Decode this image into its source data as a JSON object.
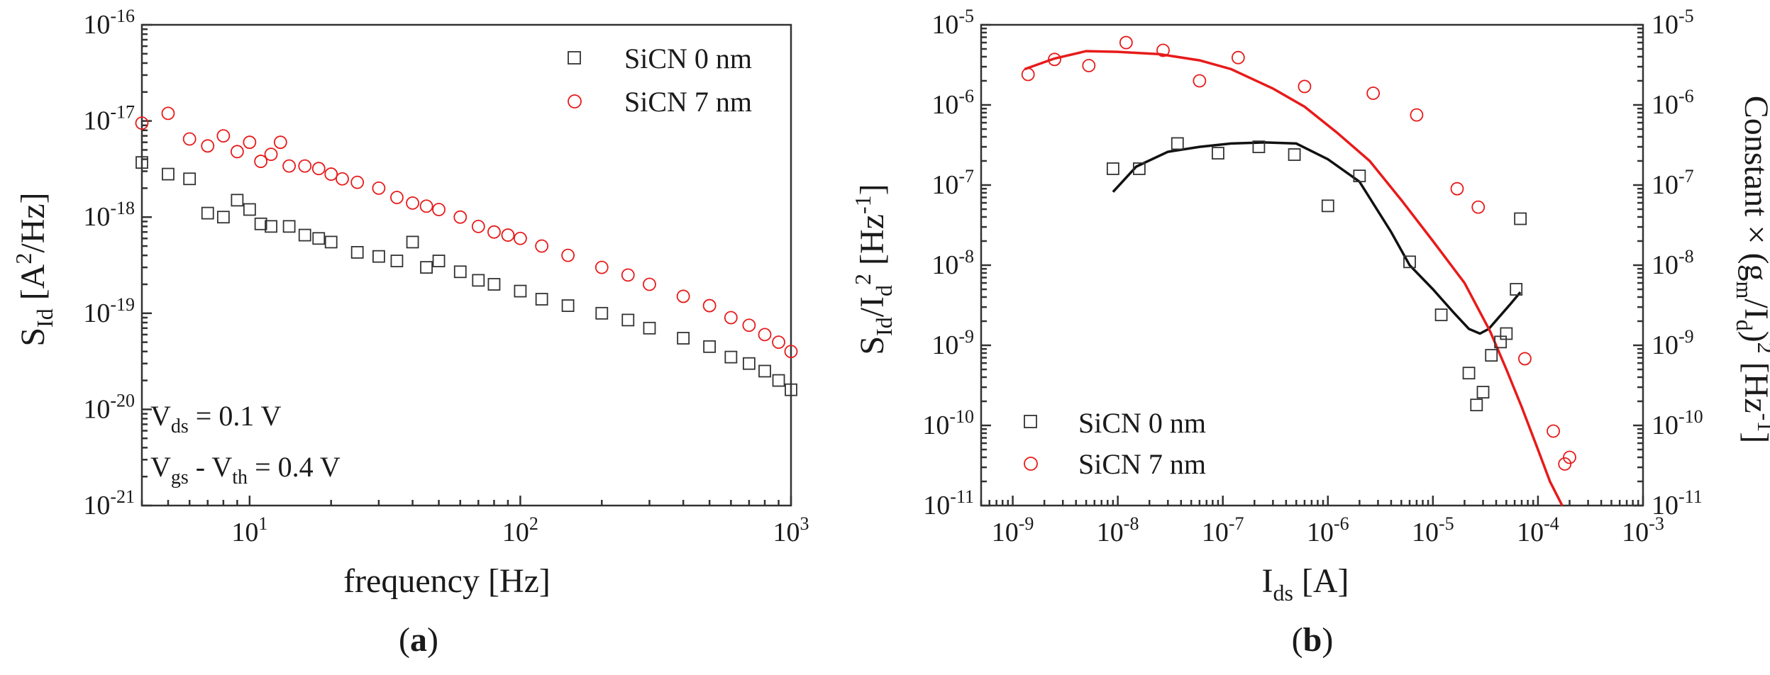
{
  "chart_data": [
    {
      "type": "scatter",
      "panel_label": "(a)",
      "xlabel": "frequency [Hz]",
      "ylabel": "S_Id [A^2/Hz]",
      "xscale": "log",
      "yscale": "log",
      "xlim": [
        4,
        1000
      ],
      "ylim": [
        1e-21,
        1e-16
      ],
      "x_ticks": [
        {
          "v": 10,
          "m": "10",
          "e": "1"
        },
        {
          "v": 100,
          "m": "10",
          "e": "2"
        },
        {
          "v": 1000,
          "m": "10",
          "e": "3"
        }
      ],
      "y_ticks": [
        {
          "v": 1e-21,
          "m": "10",
          "e": "-21"
        },
        {
          "v": 1e-20,
          "m": "10",
          "e": "-20"
        },
        {
          "v": 1e-19,
          "m": "10",
          "e": "-19"
        },
        {
          "v": 1e-18,
          "m": "10",
          "e": "-18"
        },
        {
          "v": 1e-17,
          "m": "10",
          "e": "-17"
        },
        {
          "v": 1e-16,
          "m": "10",
          "e": "-16"
        }
      ],
      "annotations": [
        {
          "main": "V",
          "sub": "ds",
          "rest": " = 0.1 V"
        },
        {
          "main": "V",
          "sub": "gs",
          "mid": " - V",
          "sub2": "th",
          "rest": " = 0.4 V"
        }
      ],
      "legend": {
        "position": "top-right",
        "entries": [
          "SiCN 0 nm",
          "SiCN 7 nm"
        ]
      },
      "series": [
        {
          "name": "SiCN 0 nm",
          "marker": "square",
          "color": "#333333",
          "x": [
            4,
            5,
            6,
            7,
            8,
            9,
            10,
            11,
            12,
            14,
            16,
            18,
            20,
            25,
            30,
            35,
            40,
            45,
            50,
            60,
            70,
            80,
            100,
            120,
            150,
            200,
            250,
            300,
            400,
            500,
            600,
            700,
            800,
            900,
            1000
          ],
          "y": [
            3.7e-18,
            2.8e-18,
            2.5e-18,
            1.1e-18,
            1e-18,
            1.5e-18,
            1.2e-18,
            8.5e-19,
            8e-19,
            8e-19,
            6.5e-19,
            6e-19,
            5.5e-19,
            4.3e-19,
            3.9e-19,
            3.5e-19,
            5.5e-19,
            3e-19,
            3.5e-19,
            2.7e-19,
            2.2e-19,
            2e-19,
            1.7e-19,
            1.4e-19,
            1.2e-19,
            1e-19,
            8.5e-20,
            7e-20,
            5.5e-20,
            4.5e-20,
            3.5e-20,
            3e-20,
            2.5e-20,
            2e-20,
            1.6e-20
          ]
        },
        {
          "name": "SiCN 7 nm",
          "marker": "circle",
          "color": "#e81a1a",
          "x": [
            4,
            5,
            6,
            7,
            8,
            9,
            10,
            11,
            12,
            13,
            14,
            16,
            18,
            20,
            22,
            25,
            30,
            35,
            40,
            45,
            50,
            60,
            70,
            80,
            90,
            100,
            120,
            150,
            200,
            250,
            300,
            400,
            500,
            600,
            700,
            800,
            900,
            1000
          ],
          "y": [
            9.5e-18,
            1.2e-17,
            6.5e-18,
            5.5e-18,
            7e-18,
            4.8e-18,
            6e-18,
            3.8e-18,
            4.5e-18,
            6e-18,
            3.4e-18,
            3.4e-18,
            3.2e-18,
            2.8e-18,
            2.5e-18,
            2.3e-18,
            2e-18,
            1.6e-18,
            1.4e-18,
            1.3e-18,
            1.2e-18,
            1e-18,
            8e-19,
            7e-19,
            6.5e-19,
            6e-19,
            5e-19,
            4e-19,
            3e-19,
            2.5e-19,
            2e-19,
            1.5e-19,
            1.2e-19,
            9e-20,
            7.5e-20,
            6e-20,
            5e-20,
            4e-20
          ]
        }
      ]
    },
    {
      "type": "scatter",
      "panel_label": "(b)",
      "xlabel": "I_ds [A]",
      "ylabel": "S_Id/I_d^2 [Hz^-1]",
      "y2label": "Constant × (g_m/I_d)^2 [Hz^-1]",
      "xscale": "log",
      "yscale": "log",
      "xlim": [
        5e-10,
        0.001
      ],
      "ylim": [
        1e-11,
        1e-05
      ],
      "x_ticks": [
        {
          "v": 1e-09,
          "m": "10",
          "e": "-9"
        },
        {
          "v": 1e-08,
          "m": "10",
          "e": "-8"
        },
        {
          "v": 1e-07,
          "m": "10",
          "e": "-7"
        },
        {
          "v": 1e-06,
          "m": "10",
          "e": "-6"
        },
        {
          "v": 1e-05,
          "m": "10",
          "e": "-5"
        },
        {
          "v": 0.0001,
          "m": "10",
          "e": "-4"
        },
        {
          "v": 0.001,
          "m": "10",
          "e": "-3"
        }
      ],
      "y_ticks": [
        {
          "v": 1e-11,
          "m": "10",
          "e": "-11"
        },
        {
          "v": 1e-10,
          "m": "10",
          "e": "-10"
        },
        {
          "v": 1e-09,
          "m": "10",
          "e": "-9"
        },
        {
          "v": 1e-08,
          "m": "10",
          "e": "-8"
        },
        {
          "v": 1e-07,
          "m": "10",
          "e": "-7"
        },
        {
          "v": 1e-06,
          "m": "10",
          "e": "-6"
        },
        {
          "v": 1e-05,
          "m": "10",
          "e": "-5"
        }
      ],
      "legend": {
        "position": "bottom-left",
        "entries": [
          "SiCN 0 nm",
          "SiCN 7 nm"
        ]
      },
      "series": [
        {
          "name": "SiCN 0 nm",
          "marker": "square",
          "color": "#333333",
          "x": [
            9e-09,
            1.6e-08,
            3.7e-08,
            9e-08,
            2.2e-07,
            4.8e-07,
            1e-06,
            2e-06,
            6e-06,
            1.2e-05,
            2.2e-05,
            2.6e-05,
            3e-05,
            3.6e-05,
            4.4e-05,
            5e-05,
            6.2e-05,
            6.8e-05
          ],
          "y": [
            1.6e-07,
            1.6e-07,
            3.3e-07,
            2.5e-07,
            3e-07,
            2.4e-07,
            5.5e-08,
            1.3e-07,
            1.1e-08,
            2.4e-09,
            4.5e-10,
            1.8e-10,
            2.6e-10,
            7.5e-10,
            1.1e-09,
            1.4e-09,
            5e-09,
            3.8e-08
          ]
        },
        {
          "name": "SiCN 7 nm",
          "marker": "circle",
          "color": "#e81a1a",
          "x": [
            1.4e-09,
            2.5e-09,
            5.3e-09,
            1.2e-08,
            2.7e-08,
            6e-08,
            1.4e-07,
            6e-07,
            2.7e-06,
            7e-06,
            1.7e-05,
            2.7e-05,
            7.5e-05,
            0.00014,
            0.00018,
            0.0002
          ],
          "y": [
            2.4e-06,
            3.7e-06,
            3.1e-06,
            6e-06,
            4.8e-06,
            2e-06,
            3.9e-06,
            1.7e-06,
            1.4e-06,
            7.5e-07,
            9e-08,
            5.3e-08,
            6.8e-10,
            8.5e-11,
            3.3e-11,
            4e-11
          ]
        }
      ],
      "fit_lines": [
        {
          "name": "SiCN 0 nm fit",
          "color": "#111111",
          "x": [
            9e-09,
            1.5e-08,
            3e-08,
            6e-08,
            1.2e-07,
            2.5e-07,
            5e-07,
            1e-06,
            2e-06,
            4e-06,
            6e-06,
            1e-05,
            1.6e-05,
            2.2e-05,
            2.8e-05,
            3.4e-05,
            4.2e-05,
            5.5e-05,
            6.8e-05
          ],
          "y": [
            8.2e-08,
            1.7e-07,
            2.6e-07,
            3e-07,
            3.3e-07,
            3.4e-07,
            3.3e-07,
            2.1e-07,
            1.1e-07,
            2.6e-08,
            1e-08,
            5e-09,
            2.5e-09,
            1.6e-09,
            1.4e-09,
            1.6e-09,
            2.2e-09,
            3.3e-09,
            4.6e-09
          ]
        },
        {
          "name": "SiCN 7 nm fit",
          "color": "#e81a1a",
          "x": [
            1.3e-09,
            2.5e-09,
            5e-09,
            1e-08,
            2.5e-08,
            6e-08,
            1.2e-07,
            3e-07,
            6e-07,
            1.2e-06,
            2.5e-06,
            5e-06,
            1e-05,
            2e-05,
            3.5e-05,
            5e-05,
            7e-05,
            0.0001,
            0.00013,
            0.00017
          ],
          "y": [
            2.8e-06,
            3.8e-06,
            4.7e-06,
            4.6e-06,
            4.3e-06,
            3.6e-06,
            2.8e-06,
            1.6e-06,
            9.5e-07,
            4.6e-07,
            2e-07,
            6.5e-08,
            2e-08,
            6e-09,
            1.5e-09,
            5e-10,
            1.7e-10,
            5e-11,
            2e-11,
            1e-11
          ]
        }
      ]
    }
  ]
}
